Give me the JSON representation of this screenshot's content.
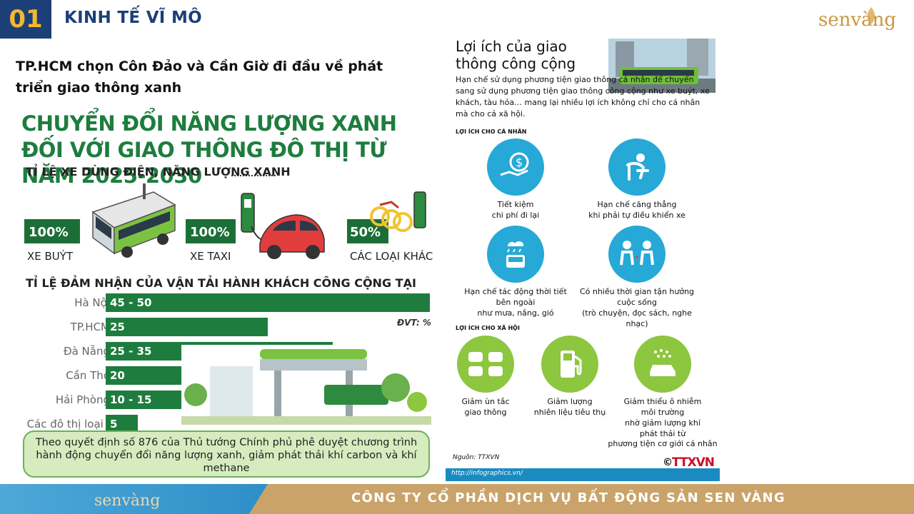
{
  "header": {
    "section_number": "01",
    "section_title": "KINH TẾ VĨ MÔ",
    "logo_text": "senvàng"
  },
  "headline": "TP.HCM chọn Côn Đảo và Cần Giờ đi đầu về phát triển giao thông xanh",
  "left_infographic": {
    "title": "CHUYỂN ĐỔI NĂNG LƯỢNG XANH ĐỐI VỚI GIAO THÔNG ĐÔ THỊ TỪ NĂM 2025-2030",
    "ev_section_title": "TỈ LỆ XE DÙNG ĐIỆN, NĂNG LƯỢNG XANH",
    "ev_targets": [
      {
        "value": "100%",
        "label": "XE BUÝT"
      },
      {
        "value": "100%",
        "label": "XE TAXI"
      },
      {
        "value": "50%",
        "label": "CÁC LOẠI KHÁC"
      }
    ],
    "modal_share_title": "TỈ LỆ ĐẢM NHẬN CỦA VẬN TẢI HÀNH KHÁCH CÔNG CỘNG TẠI",
    "unit": "ĐVT: %",
    "decree": "Theo quyết định số 876 của Thủ tướng Chính phủ phê duyệt chương trình hành động chuyển đổi năng lượng xanh, giảm phát thải khí carbon và khí methane"
  },
  "chart_data": {
    "type": "bar",
    "title": "TỈ LỆ ĐẢM NHẬN CỦA VẬN TẢI HÀNH KHÁCH CÔNG CỘNG TẠI",
    "unit": "ĐVT: %",
    "orientation": "horizontal",
    "categories": [
      "Hà Nội",
      "TP.HCM",
      "Đà Nẵng",
      "Cần Thơ",
      "Hải Phòng",
      "Các đô thị loại I"
    ],
    "labels": [
      "45 - 50",
      "25",
      "25 - 35",
      "20",
      "10 - 15",
      "5"
    ],
    "values": [
      50,
      25,
      35,
      20,
      15,
      5
    ],
    "xlim": [
      0,
      50
    ]
  },
  "right_infographic": {
    "title": "Lợi ích của giao thông công cộng",
    "intro": "Hạn chế sử dụng phương tiện giao thông cá nhân để chuyển sang sử dụng phương tiện giao thông công cộng như xe buýt, xe khách, tàu hỏa… mang lại nhiều lợi ích không chỉ cho cá nhân mà cho cả xã hội.",
    "personal_title": "LỢI ÍCH CHO CÁ NHÂN",
    "personal": [
      {
        "icon": "money-hand-icon",
        "text": "Tiết kiệm\nchi phí đi lại"
      },
      {
        "icon": "relaxed-person-icon",
        "text": "Hạn chế căng thẳng\nkhi phải tự điều khiển xe"
      },
      {
        "icon": "weather-bus-icon",
        "text": "Hạn chế tác động thời tiết\nbên ngoài\nnhư mưa, nắng, gió"
      },
      {
        "icon": "people-chatting-icon",
        "text": "Có nhiều thời gian tận hưởng\ncuộc sống\n(trò chuyện, đọc sách, nghe nhạc)"
      }
    ],
    "social_title": "LỢI ÍCH CHO XÃ HỘI",
    "social": [
      {
        "icon": "traffic-jam-icon",
        "text": "Giảm ùn tắc\ngiao thông"
      },
      {
        "icon": "fuel-pump-icon",
        "text": "Giảm lượng\nnhiên liệu tiêu thụ"
      },
      {
        "icon": "car-emission-icon",
        "text": "Giảm thiểu ô nhiễm\nmôi trường\nnhờ giảm lượng khí\nphát thải từ\nphương tiện cơ giới cá nhân"
      }
    ],
    "source": "Nguồn: TTXVN",
    "url": "http://infographics.vn/",
    "copyright": "©",
    "agency": "TTXVN"
  },
  "footer": {
    "logo_text": "senvàng",
    "company": "CÔNG TY CỔ PHẦN DỊCH VỤ BẤT ĐỘNG SẢN SEN VÀNG"
  },
  "colors": {
    "navy": "#1c3f78",
    "gold": "#f2b830",
    "green": "#1e7d3e",
    "blue": "#26a9d6",
    "light_green": "#8dc63f"
  }
}
